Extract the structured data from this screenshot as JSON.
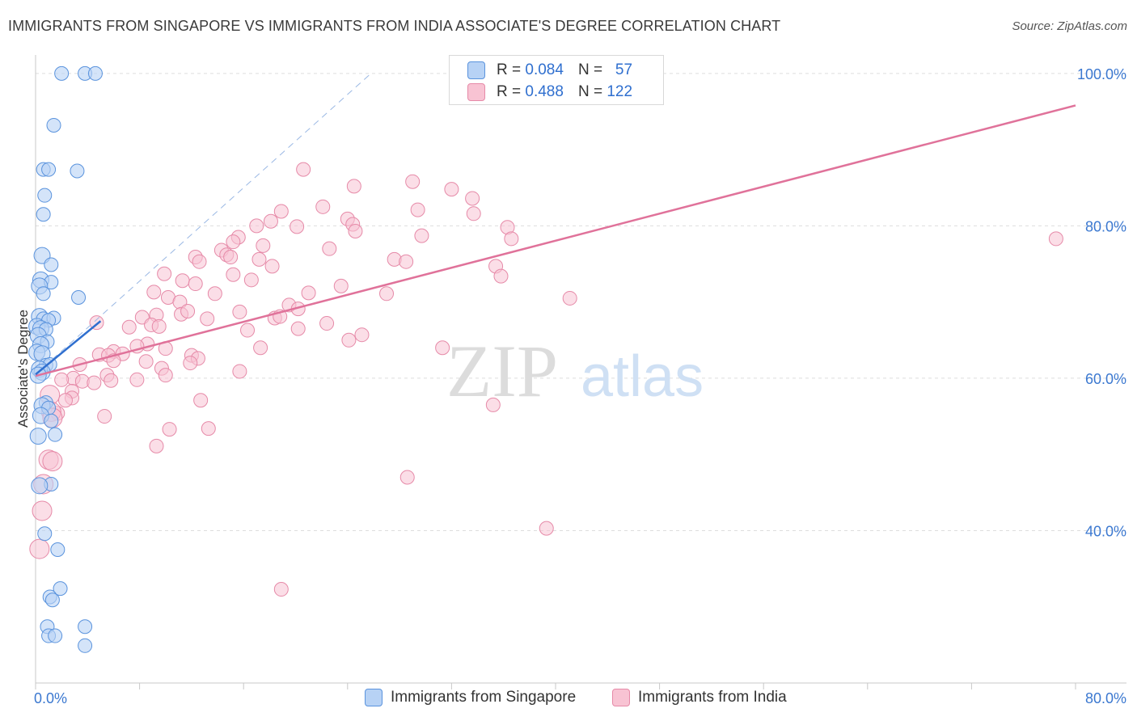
{
  "title": "IMMIGRANTS FROM SINGAPORE VS IMMIGRANTS FROM INDIA ASSOCIATE'S DEGREE CORRELATION CHART",
  "source": "Source: ZipAtlas.com",
  "watermark": {
    "zip": "ZIP",
    "atlas": "atlas"
  },
  "colors": {
    "singapore_fill": "#b7d2f5",
    "singapore_stroke": "#5a93dd",
    "singapore_line": "#2f6fcf",
    "india_fill": "#f8c3d3",
    "india_stroke": "#e68aa8",
    "india_line": "#e0729a",
    "grid": "#dddddd",
    "tick_label": "#3b78d0"
  },
  "legend_top": {
    "r_label": "R =",
    "n_label": "N =",
    "rows": [
      {
        "r": "0.084",
        "n": "57"
      },
      {
        "r": "0.488",
        "n": "122"
      }
    ]
  },
  "legend_bottom": [
    "Immigrants from Singapore",
    "Immigrants from India"
  ],
  "chart_data": {
    "type": "scatter",
    "xlabel": "",
    "ylabel": "Associate's Degree",
    "xlim": [
      0,
      80
    ],
    "ylim": [
      20,
      102
    ],
    "x_tick_labels": [
      "0.0%",
      "80.0%"
    ],
    "y_ticks": [
      40,
      60,
      80,
      100
    ],
    "y_tick_labels": [
      "40.0%",
      "60.0%",
      "80.0%",
      "100.0%"
    ],
    "series": [
      {
        "name": "Immigrants from Singapore",
        "R": 0.084,
        "N": 57,
        "trend": {
          "x": [
            0,
            5.0
          ],
          "y": [
            60.5,
            67.5
          ]
        },
        "reference_dashed": {
          "x": [
            0,
            25.8
          ],
          "y": [
            60.5,
            100
          ]
        },
        "points": [
          [
            2.0,
            100
          ],
          [
            3.8,
            100
          ],
          [
            4.6,
            100
          ],
          [
            1.4,
            93.2
          ],
          [
            0.6,
            87.4
          ],
          [
            1.0,
            87.4
          ],
          [
            3.2,
            87.2
          ],
          [
            0.7,
            84.0
          ],
          [
            0.6,
            81.5
          ],
          [
            0.5,
            76.1
          ],
          [
            1.2,
            74.9
          ],
          [
            0.4,
            72.9
          ],
          [
            1.2,
            72.6
          ],
          [
            0.3,
            72.1
          ],
          [
            0.6,
            71.1
          ],
          [
            3.3,
            70.6
          ],
          [
            0.3,
            68.1
          ],
          [
            0.6,
            67.8
          ],
          [
            1.4,
            67.9
          ],
          [
            1.0,
            67.6
          ],
          [
            0.1,
            66.8
          ],
          [
            0.4,
            66.5
          ],
          [
            0.8,
            66.4
          ],
          [
            0.2,
            65.6
          ],
          [
            0.9,
            64.8
          ],
          [
            0.4,
            64.4
          ],
          [
            0.1,
            63.4
          ],
          [
            0.5,
            63.2
          ],
          [
            0.8,
            61.7
          ],
          [
            1.1,
            61.8
          ],
          [
            0.3,
            61.2
          ],
          [
            0.5,
            60.8
          ],
          [
            0.2,
            60.4
          ],
          [
            0.8,
            56.8
          ],
          [
            0.5,
            56.4
          ],
          [
            1.0,
            56.1
          ],
          [
            0.4,
            55.1
          ],
          [
            1.2,
            54.4
          ],
          [
            1.5,
            52.6
          ],
          [
            0.2,
            52.4
          ],
          [
            1.2,
            46.1
          ],
          [
            0.3,
            45.9
          ],
          [
            0.7,
            39.6
          ],
          [
            1.7,
            37.5
          ],
          [
            1.9,
            32.4
          ],
          [
            1.1,
            31.3
          ],
          [
            1.3,
            30.9
          ],
          [
            0.9,
            27.4
          ],
          [
            3.8,
            27.4
          ],
          [
            1.0,
            26.2
          ],
          [
            1.5,
            26.2
          ],
          [
            3.8,
            24.9
          ]
        ]
      },
      {
        "name": "Immigrants from India",
        "R": 0.488,
        "N": 122,
        "trend": {
          "x": [
            0,
            80
          ],
          "y": [
            60.3,
            95.8
          ]
        },
        "points": [
          [
            20.6,
            87.4
          ],
          [
            24.5,
            85.2
          ],
          [
            29.0,
            85.8
          ],
          [
            32.0,
            84.8
          ],
          [
            33.6,
            83.6
          ],
          [
            22.1,
            82.5
          ],
          [
            18.9,
            81.9
          ],
          [
            29.4,
            82.1
          ],
          [
            33.7,
            81.6
          ],
          [
            24.0,
            80.9
          ],
          [
            18.1,
            80.6
          ],
          [
            17.0,
            80.0
          ],
          [
            20.1,
            79.9
          ],
          [
            24.4,
            80.2
          ],
          [
            36.3,
            79.8
          ],
          [
            24.6,
            79.3
          ],
          [
            29.7,
            78.7
          ],
          [
            15.6,
            78.5
          ],
          [
            15.2,
            77.9
          ],
          [
            36.6,
            78.3
          ],
          [
            17.5,
            77.4
          ],
          [
            22.6,
            77.0
          ],
          [
            14.3,
            76.8
          ],
          [
            14.7,
            76.2
          ],
          [
            12.3,
            75.9
          ],
          [
            15.0,
            75.9
          ],
          [
            17.2,
            75.6
          ],
          [
            27.6,
            75.6
          ],
          [
            28.5,
            75.3
          ],
          [
            12.6,
            75.3
          ],
          [
            18.2,
            74.7
          ],
          [
            35.4,
            74.7
          ],
          [
            15.2,
            73.6
          ],
          [
            9.9,
            73.7
          ],
          [
            11.3,
            72.8
          ],
          [
            16.6,
            72.9
          ],
          [
            12.3,
            72.4
          ],
          [
            23.5,
            72.1
          ],
          [
            35.8,
            73.4
          ],
          [
            9.1,
            71.3
          ],
          [
            13.8,
            71.1
          ],
          [
            21.0,
            71.2
          ],
          [
            27.0,
            71.1
          ],
          [
            10.2,
            70.6
          ],
          [
            11.1,
            70.0
          ],
          [
            41.1,
            70.5
          ],
          [
            15.7,
            68.7
          ],
          [
            19.5,
            69.6
          ],
          [
            20.2,
            69.1
          ],
          [
            11.2,
            68.4
          ],
          [
            11.7,
            68.8
          ],
          [
            8.2,
            68.0
          ],
          [
            9.3,
            68.3
          ],
          [
            18.4,
            67.9
          ],
          [
            13.2,
            67.8
          ],
          [
            18.8,
            68.1
          ],
          [
            4.7,
            67.3
          ],
          [
            8.9,
            67.0
          ],
          [
            9.5,
            66.8
          ],
          [
            16.3,
            66.3
          ],
          [
            20.2,
            66.5
          ],
          [
            22.4,
            67.2
          ],
          [
            7.2,
            66.7
          ],
          [
            8.6,
            64.5
          ],
          [
            25.1,
            65.7
          ],
          [
            24.1,
            65.0
          ],
          [
            17.3,
            64.0
          ],
          [
            7.8,
            64.2
          ],
          [
            6.0,
            63.5
          ],
          [
            10.0,
            63.9
          ],
          [
            31.3,
            64.0
          ],
          [
            4.9,
            63.1
          ],
          [
            12.0,
            63.0
          ],
          [
            6.7,
            63.2
          ],
          [
            5.6,
            63.0
          ],
          [
            12.5,
            62.6
          ],
          [
            6.0,
            62.3
          ],
          [
            8.5,
            62.2
          ],
          [
            11.9,
            62.0
          ],
          [
            3.4,
            61.8
          ],
          [
            15.7,
            60.9
          ],
          [
            9.7,
            61.3
          ],
          [
            5.5,
            60.4
          ],
          [
            10.0,
            60.4
          ],
          [
            2.9,
            60.0
          ],
          [
            5.8,
            59.7
          ],
          [
            7.8,
            59.8
          ],
          [
            3.6,
            59.6
          ],
          [
            2.0,
            59.8
          ],
          [
            4.5,
            59.4
          ],
          [
            2.8,
            58.3
          ],
          [
            1.1,
            57.8
          ],
          [
            2.8,
            57.4
          ],
          [
            12.7,
            57.1
          ],
          [
            2.3,
            57.1
          ],
          [
            35.2,
            56.5
          ],
          [
            1.7,
            55.4
          ],
          [
            1.2,
            55.6
          ],
          [
            5.3,
            55.0
          ],
          [
            1.3,
            54.8
          ],
          [
            10.3,
            53.3
          ],
          [
            13.3,
            53.4
          ],
          [
            9.3,
            51.1
          ],
          [
            1.0,
            49.3
          ],
          [
            1.3,
            49.1
          ],
          [
            28.6,
            47.0
          ],
          [
            0.6,
            46.1
          ],
          [
            0.5,
            42.6
          ],
          [
            39.3,
            40.3
          ],
          [
            0.3,
            37.6
          ],
          [
            18.9,
            32.3
          ],
          [
            78.5,
            78.3
          ]
        ]
      }
    ]
  }
}
